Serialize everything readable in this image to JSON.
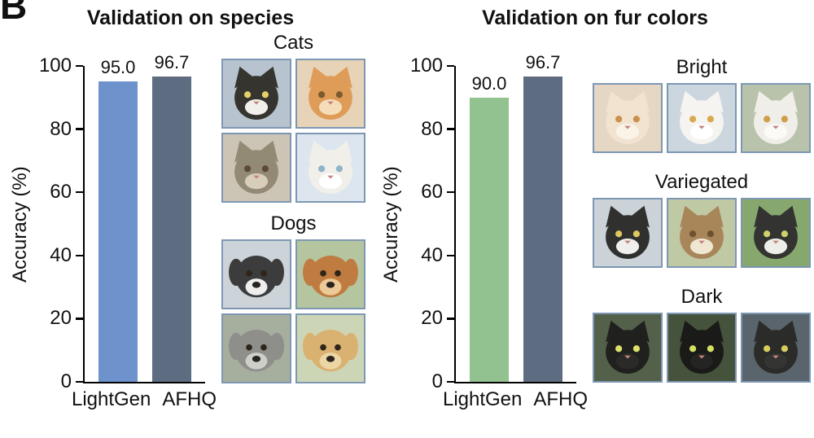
{
  "panel_label": "B",
  "style": {
    "axis_color": "#000000",
    "tile_border_color": "#7d97b3",
    "lightgen_species_color": "#6d92cc",
    "lightgen_fur_color": "#92c290",
    "afhq_color": "#5d6c80"
  },
  "chart_data": [
    {
      "type": "bar",
      "title": "Validation on species",
      "categories": [
        "LightGen",
        "AFHQ"
      ],
      "values": [
        95.0,
        96.7
      ],
      "data_labels": [
        "95.0",
        "96.7"
      ],
      "bar_colors": [
        "#6d92cc",
        "#5d6c80"
      ],
      "xlabel": "",
      "ylabel": "Accuracy (%)",
      "ylim": [
        0,
        100
      ],
      "yticks": [
        0,
        20,
        40,
        60,
        80,
        100
      ],
      "grid": false,
      "legend": "none"
    },
    {
      "type": "bar",
      "title": "Validation on fur colors",
      "categories": [
        "LightGen",
        "AFHQ"
      ],
      "values": [
        90.0,
        96.7
      ],
      "data_labels": [
        "90.0",
        "96.7"
      ],
      "bar_colors": [
        "#92c290",
        "#5d6c80"
      ],
      "xlabel": "",
      "ylabel": "Accuracy (%)",
      "ylim": [
        0,
        100
      ],
      "yticks": [
        0,
        20,
        40,
        60,
        80,
        100
      ],
      "grid": false,
      "legend": "none"
    }
  ],
  "image_panels": [
    {
      "columns": 2,
      "groups": [
        {
          "label": "Cats",
          "animal": "cat",
          "tiles": [
            {
              "fur": "#35342f",
              "muzzle": "#f2f0ea",
              "eye": "#e4d06a",
              "bg": "#b7c4cf"
            },
            {
              "fur": "#df9c58",
              "muzzle": "#f6ddba",
              "eye": "#7a5a2e",
              "bg": "#e7d4b8"
            },
            {
              "fur": "#938a76",
              "muzzle": "#d8cdb9",
              "eye": "#5c4a33",
              "bg": "#ccc5b5"
            },
            {
              "fur": "#f1efe9",
              "muzzle": "#ffffff",
              "eye": "#8fb3c8",
              "bg": "#dde6ef"
            }
          ]
        },
        {
          "label": "Dogs",
          "animal": "dog",
          "tiles": [
            {
              "fur": "#3c3c3c",
              "muzzle": "#eeeeee",
              "eye": "#2e2418",
              "bg": "#ccd4d9"
            },
            {
              "fur": "#bf7b40",
              "muzzle": "#ecc996",
              "eye": "#2e2418",
              "bg": "#b4c5a0"
            },
            {
              "fur": "#8e8e8a",
              "muzzle": "#cfcfc9",
              "eye": "#2e2418",
              "bg": "#a6ae9e"
            },
            {
              "fur": "#d9b170",
              "muzzle": "#ecd6a6",
              "eye": "#2e2418",
              "bg": "#ccd6b6"
            }
          ]
        }
      ]
    },
    {
      "columns": 3,
      "groups": [
        {
          "label": "Bright",
          "animal": "cat",
          "tiles": [
            {
              "fur": "#f1e3d0",
              "muzzle": "#faf3e8",
              "eye": "#c9914e",
              "bg": "#e6d6c4"
            },
            {
              "fur": "#f6f4f0",
              "muzzle": "#ffffff",
              "eye": "#d8a94e",
              "bg": "#ccd6de"
            },
            {
              "fur": "#f0eee8",
              "muzzle": "#fbfaf6",
              "eye": "#d09e4a",
              "bg": "#b9c3ab"
            }
          ]
        },
        {
          "label": "Variegated",
          "animal": "cat",
          "tiles": [
            {
              "fur": "#30302e",
              "muzzle": "#f0efec",
              "eye": "#ddc861",
              "bg": "#cbd3d8"
            },
            {
              "fur": "#a9855a",
              "muzzle": "#f0e7d2",
              "eye": "#6d5230",
              "bg": "#bfcaa4"
            },
            {
              "fur": "#333331",
              "muzzle": "#ededea",
              "eye": "#cdd36a",
              "bg": "#86a86e"
            }
          ]
        },
        {
          "label": "Dark",
          "animal": "cat",
          "tiles": [
            {
              "fur": "#20201e",
              "muzzle": "#2a2a28",
              "eye": "#dde26a",
              "bg": "#53614a"
            },
            {
              "fur": "#1a1a18",
              "muzzle": "#242422",
              "eye": "#d3e061",
              "bg": "#45523c"
            },
            {
              "fur": "#2b2b29",
              "muzzle": "#343432",
              "eye": "#d6cf5d",
              "bg": "#5a646c"
            }
          ]
        }
      ]
    }
  ]
}
